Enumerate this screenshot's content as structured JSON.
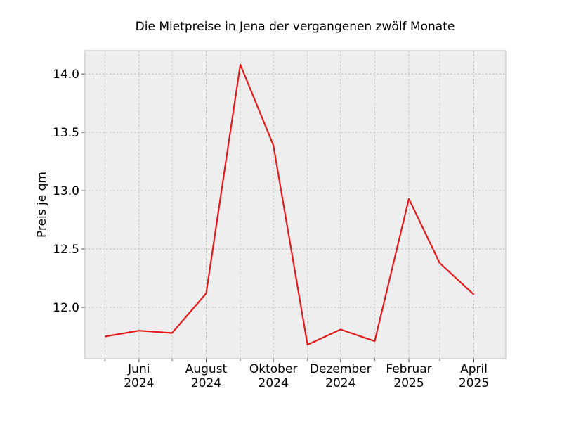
{
  "chart_data": {
    "type": "line",
    "title": "Die Mietpreise in Jena der vergangenen zwölf Monate",
    "xlabel": "",
    "ylabel": "Preis je qm",
    "x": [
      "2024-05",
      "2024-06",
      "2024-07",
      "2024-08",
      "2024-09",
      "2024-10",
      "2024-11",
      "2024-12",
      "2025-01",
      "2025-02",
      "2025-03",
      "2025-04"
    ],
    "series": [
      {
        "values": [
          11.75,
          11.8,
          11.78,
          12.12,
          14.08,
          13.39,
          11.68,
          11.81,
          11.71,
          12.93,
          12.38,
          12.11
        ],
        "color": "#e41a1c"
      }
    ],
    "xlim": [
      "2024-04-13",
      "2025-04-30"
    ],
    "ylim": [
      11.56,
      14.2
    ],
    "yticks": [
      "12.0",
      "12.5",
      "13.0",
      "13.5",
      "14.0"
    ],
    "xticks": [
      {
        "date": "2024-06",
        "line1": "Juni",
        "line2": "2024"
      },
      {
        "date": "2024-08",
        "line1": "August",
        "line2": "2024"
      },
      {
        "date": "2024-10",
        "line1": "Oktober",
        "line2": "2024"
      },
      {
        "date": "2024-12",
        "line1": "Dezember",
        "line2": "2024"
      },
      {
        "date": "2025-02",
        "line1": "Februar",
        "line2": "2025"
      },
      {
        "date": "2025-04",
        "line1": "April",
        "line2": "2025"
      }
    ],
    "minor_xticks": [
      "2024-05",
      "2024-07",
      "2024-09",
      "2024-11",
      "2025-01",
      "2025-03"
    ],
    "grid": true,
    "background": "#eeeeee",
    "grid_color": "#b0b0b0"
  }
}
